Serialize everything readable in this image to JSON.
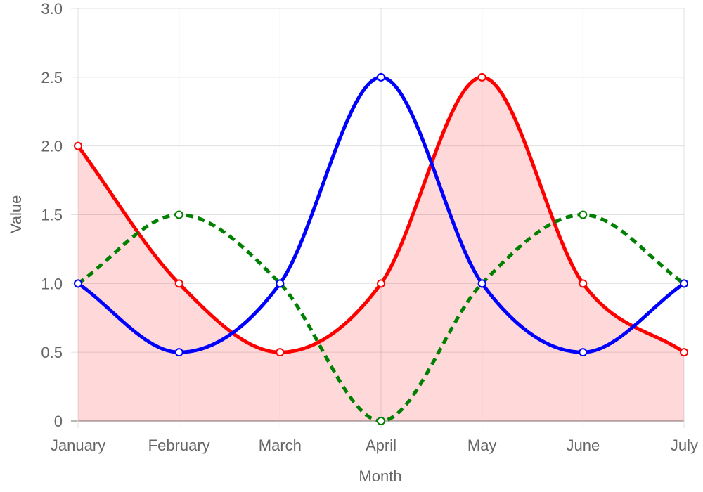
{
  "chart_data": {
    "type": "line",
    "title": "",
    "xlabel": "Month",
    "ylabel": "Value",
    "categories": [
      "January",
      "February",
      "March",
      "April",
      "May",
      "June",
      "July"
    ],
    "ylim": [
      0,
      3.0
    ],
    "yticks": [
      "0",
      "0.5",
      "1.0",
      "1.5",
      "2.0",
      "2.5",
      "3.0"
    ],
    "ytick_values": [
      0,
      0.5,
      1.0,
      1.5,
      2.0,
      2.5,
      3.0
    ],
    "grid": true,
    "legend": "none",
    "series": [
      {
        "values": [
          2,
          1,
          0.5,
          1,
          2.5,
          1,
          0.5
        ],
        "color": "#ff0000",
        "fill": "rgba(255,0,0,0.15)",
        "dashed": false,
        "curve": "smooth"
      },
      {
        "values": [
          1,
          1.5,
          1,
          0,
          1,
          1.5,
          1
        ],
        "color": "#008000",
        "fill": null,
        "dashed": true,
        "curve": "smooth"
      },
      {
        "values": [
          1,
          0.5,
          1,
          2.5,
          1,
          0.5,
          1
        ],
        "color": "#0000ff",
        "fill": null,
        "dashed": false,
        "curve": "smooth"
      }
    ]
  }
}
